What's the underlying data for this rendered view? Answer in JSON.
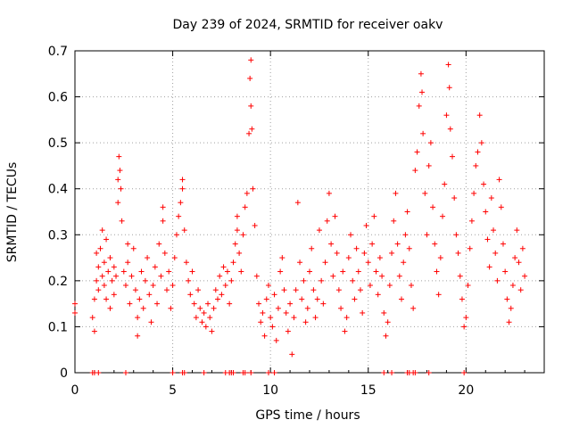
{
  "chart_data": {
    "type": "scatter",
    "title": "Day 239 of 2024, SRMTID for receiver oakv",
    "xlabel": "GPS time / hours",
    "ylabel": "SRMTID / TECUs",
    "xlim": [
      0,
      24.0
    ],
    "ylim": [
      0,
      0.7
    ],
    "x_ticks": [
      0,
      5,
      10,
      15,
      20
    ],
    "y_ticks": [
      0,
      0.1,
      0.2,
      0.3,
      0.4,
      0.5,
      0.6,
      0.7
    ],
    "x_tick_labels": [
      "0",
      "5",
      "10",
      "15",
      "20"
    ],
    "y_tick_labels": [
      "0",
      "0.1",
      "0.2",
      "0.3",
      "0.4",
      "0.5",
      "0.6",
      "0.7"
    ],
    "grid": true,
    "marker": "+",
    "series_color": "#ff0000",
    "series": [
      {
        "name": "SRMTID",
        "points": [
          [
            0.0,
            0.15
          ],
          [
            0.0,
            0.13
          ],
          [
            0.9,
            0.12
          ],
          [
            1.0,
            0.09
          ],
          [
            1.0,
            0.16
          ],
          [
            1.1,
            0.2
          ],
          [
            1.1,
            0.26
          ],
          [
            1.2,
            0.18
          ],
          [
            1.2,
            0.23
          ],
          [
            1.3,
            0.27
          ],
          [
            1.4,
            0.21
          ],
          [
            1.4,
            0.31
          ],
          [
            1.5,
            0.24
          ],
          [
            1.5,
            0.19
          ],
          [
            1.6,
            0.29
          ],
          [
            1.6,
            0.16
          ],
          [
            1.7,
            0.22
          ],
          [
            1.8,
            0.25
          ],
          [
            1.8,
            0.14
          ],
          [
            1.9,
            0.2
          ],
          [
            2.0,
            0.17
          ],
          [
            2.0,
            0.23
          ],
          [
            2.1,
            0.21
          ],
          [
            2.2,
            0.37
          ],
          [
            2.2,
            0.42
          ],
          [
            2.25,
            0.47
          ],
          [
            2.3,
            0.44
          ],
          [
            2.35,
            0.4
          ],
          [
            2.4,
            0.33
          ],
          [
            2.5,
            0.22
          ],
          [
            2.6,
            0.19
          ],
          [
            2.7,
            0.24
          ],
          [
            2.7,
            0.28
          ],
          [
            2.8,
            0.15
          ],
          [
            2.9,
            0.21
          ],
          [
            3.0,
            0.27
          ],
          [
            3.1,
            0.18
          ],
          [
            3.2,
            0.12
          ],
          [
            3.2,
            0.08
          ],
          [
            3.3,
            0.16
          ],
          [
            3.4,
            0.22
          ],
          [
            3.5,
            0.14
          ],
          [
            3.6,
            0.2
          ],
          [
            3.7,
            0.25
          ],
          [
            3.8,
            0.17
          ],
          [
            3.9,
            0.11
          ],
          [
            4.0,
            0.19
          ],
          [
            4.1,
            0.23
          ],
          [
            4.2,
            0.15
          ],
          [
            4.3,
            0.28
          ],
          [
            4.4,
            0.21
          ],
          [
            4.5,
            0.33
          ],
          [
            4.5,
            0.36
          ],
          [
            4.6,
            0.26
          ],
          [
            4.7,
            0.18
          ],
          [
            4.8,
            0.22
          ],
          [
            4.9,
            0.14
          ],
          [
            5.0,
            0.19
          ],
          [
            5.1,
            0.25
          ],
          [
            5.2,
            0.3
          ],
          [
            5.3,
            0.34
          ],
          [
            5.4,
            0.37
          ],
          [
            5.5,
            0.4
          ],
          [
            5.5,
            0.42
          ],
          [
            5.6,
            0.31
          ],
          [
            5.7,
            0.24
          ],
          [
            5.8,
            0.2
          ],
          [
            5.9,
            0.17
          ],
          [
            6.0,
            0.22
          ],
          [
            6.1,
            0.15
          ],
          [
            6.2,
            0.12
          ],
          [
            6.3,
            0.18
          ],
          [
            6.4,
            0.14
          ],
          [
            6.5,
            0.11
          ],
          [
            6.6,
            0.13
          ],
          [
            6.7,
            0.1
          ],
          [
            6.8,
            0.15
          ],
          [
            6.9,
            0.12
          ],
          [
            7.0,
            0.09
          ],
          [
            7.1,
            0.14
          ],
          [
            7.2,
            0.18
          ],
          [
            7.3,
            0.16
          ],
          [
            7.4,
            0.21
          ],
          [
            7.5,
            0.17
          ],
          [
            7.6,
            0.23
          ],
          [
            7.7,
            0.19
          ],
          [
            7.8,
            0.22
          ],
          [
            7.9,
            0.15
          ],
          [
            8.0,
            0.2
          ],
          [
            8.1,
            0.24
          ],
          [
            8.2,
            0.28
          ],
          [
            8.3,
            0.31
          ],
          [
            8.3,
            0.34
          ],
          [
            8.4,
            0.26
          ],
          [
            8.5,
            0.22
          ],
          [
            8.6,
            0.3
          ],
          [
            8.7,
            0.36
          ],
          [
            8.8,
            0.39
          ],
          [
            8.9,
            0.52
          ],
          [
            8.95,
            0.64
          ],
          [
            9.0,
            0.68
          ],
          [
            9.0,
            0.58
          ],
          [
            9.05,
            0.53
          ],
          [
            9.1,
            0.4
          ],
          [
            9.2,
            0.32
          ],
          [
            9.3,
            0.21
          ],
          [
            9.4,
            0.15
          ],
          [
            9.5,
            0.11
          ],
          [
            9.6,
            0.13
          ],
          [
            9.7,
            0.08
          ],
          [
            9.8,
            0.16
          ],
          [
            9.9,
            0.19
          ],
          [
            10.0,
            0.12
          ],
          [
            10.1,
            0.1
          ],
          [
            10.2,
            0.17
          ],
          [
            10.3,
            0.07
          ],
          [
            10.4,
            0.14
          ],
          [
            10.5,
            0.22
          ],
          [
            10.6,
            0.25
          ],
          [
            10.7,
            0.18
          ],
          [
            10.8,
            0.13
          ],
          [
            10.9,
            0.09
          ],
          [
            11.0,
            0.15
          ],
          [
            11.1,
            0.04
          ],
          [
            11.2,
            0.12
          ],
          [
            11.3,
            0.18
          ],
          [
            11.4,
            0.37
          ],
          [
            11.5,
            0.24
          ],
          [
            11.6,
            0.16
          ],
          [
            11.7,
            0.2
          ],
          [
            11.8,
            0.11
          ],
          [
            11.9,
            0.14
          ],
          [
            12.0,
            0.22
          ],
          [
            12.1,
            0.27
          ],
          [
            12.2,
            0.18
          ],
          [
            12.3,
            0.12
          ],
          [
            12.4,
            0.16
          ],
          [
            12.5,
            0.31
          ],
          [
            12.6,
            0.2
          ],
          [
            12.7,
            0.15
          ],
          [
            12.8,
            0.24
          ],
          [
            12.9,
            0.33
          ],
          [
            13.0,
            0.39
          ],
          [
            13.1,
            0.28
          ],
          [
            13.2,
            0.21
          ],
          [
            13.3,
            0.34
          ],
          [
            13.4,
            0.26
          ],
          [
            13.5,
            0.18
          ],
          [
            13.6,
            0.14
          ],
          [
            13.7,
            0.22
          ],
          [
            13.8,
            0.09
          ],
          [
            13.9,
            0.12
          ],
          [
            14.0,
            0.25
          ],
          [
            14.1,
            0.3
          ],
          [
            14.2,
            0.2
          ],
          [
            14.3,
            0.16
          ],
          [
            14.4,
            0.27
          ],
          [
            14.5,
            0.22
          ],
          [
            14.6,
            0.18
          ],
          [
            14.7,
            0.13
          ],
          [
            14.8,
            0.26
          ],
          [
            14.9,
            0.32
          ],
          [
            15.0,
            0.24
          ],
          [
            15.1,
            0.19
          ],
          [
            15.2,
            0.28
          ],
          [
            15.3,
            0.34
          ],
          [
            15.4,
            0.22
          ],
          [
            15.5,
            0.17
          ],
          [
            15.6,
            0.25
          ],
          [
            15.7,
            0.21
          ],
          [
            15.8,
            0.13
          ],
          [
            15.9,
            0.08
          ],
          [
            16.0,
            0.11
          ],
          [
            16.1,
            0.19
          ],
          [
            16.2,
            0.26
          ],
          [
            16.3,
            0.33
          ],
          [
            16.4,
            0.39
          ],
          [
            16.5,
            0.28
          ],
          [
            16.6,
            0.21
          ],
          [
            16.7,
            0.16
          ],
          [
            16.8,
            0.24
          ],
          [
            16.9,
            0.3
          ],
          [
            17.0,
            0.35
          ],
          [
            17.1,
            0.27
          ],
          [
            17.2,
            0.19
          ],
          [
            17.3,
            0.14
          ],
          [
            17.4,
            0.44
          ],
          [
            17.5,
            0.48
          ],
          [
            17.6,
            0.58
          ],
          [
            17.7,
            0.65
          ],
          [
            17.75,
            0.61
          ],
          [
            17.8,
            0.52
          ],
          [
            17.9,
            0.39
          ],
          [
            18.0,
            0.3
          ],
          [
            18.1,
            0.45
          ],
          [
            18.2,
            0.5
          ],
          [
            18.3,
            0.36
          ],
          [
            18.4,
            0.28
          ],
          [
            18.5,
            0.22
          ],
          [
            18.6,
            0.17
          ],
          [
            18.7,
            0.25
          ],
          [
            18.8,
            0.34
          ],
          [
            18.9,
            0.41
          ],
          [
            19.0,
            0.56
          ],
          [
            19.1,
            0.67
          ],
          [
            19.15,
            0.62
          ],
          [
            19.2,
            0.53
          ],
          [
            19.3,
            0.47
          ],
          [
            19.4,
            0.38
          ],
          [
            19.5,
            0.3
          ],
          [
            19.6,
            0.26
          ],
          [
            19.7,
            0.21
          ],
          [
            19.8,
            0.16
          ],
          [
            19.9,
            0.1
          ],
          [
            20.0,
            0.12
          ],
          [
            20.1,
            0.19
          ],
          [
            20.2,
            0.27
          ],
          [
            20.3,
            0.33
          ],
          [
            20.4,
            0.39
          ],
          [
            20.5,
            0.45
          ],
          [
            20.6,
            0.48
          ],
          [
            20.7,
            0.56
          ],
          [
            20.8,
            0.5
          ],
          [
            20.9,
            0.41
          ],
          [
            21.0,
            0.35
          ],
          [
            21.1,
            0.29
          ],
          [
            21.2,
            0.23
          ],
          [
            21.3,
            0.38
          ],
          [
            21.4,
            0.31
          ],
          [
            21.5,
            0.26
          ],
          [
            21.6,
            0.2
          ],
          [
            21.7,
            0.42
          ],
          [
            21.8,
            0.36
          ],
          [
            21.9,
            0.28
          ],
          [
            22.0,
            0.22
          ],
          [
            22.1,
            0.16
          ],
          [
            22.2,
            0.11
          ],
          [
            22.3,
            0.14
          ],
          [
            22.4,
            0.19
          ],
          [
            22.5,
            0.25
          ],
          [
            22.6,
            0.31
          ],
          [
            22.7,
            0.24
          ],
          [
            22.8,
            0.18
          ],
          [
            22.9,
            0.27
          ],
          [
            23.0,
            0.21
          ]
        ]
      }
    ],
    "zero_points_x": [
      0.9,
      1.0,
      1.2,
      2.6,
      5.0,
      5.5,
      5.6,
      6.6,
      7.7,
      7.9,
      8.0,
      8.1,
      8.6,
      8.7,
      9.0,
      9.9,
      10.2,
      15.8,
      16.2,
      17.0,
      17.1,
      17.3,
      17.4,
      18.1,
      19.9
    ]
  }
}
